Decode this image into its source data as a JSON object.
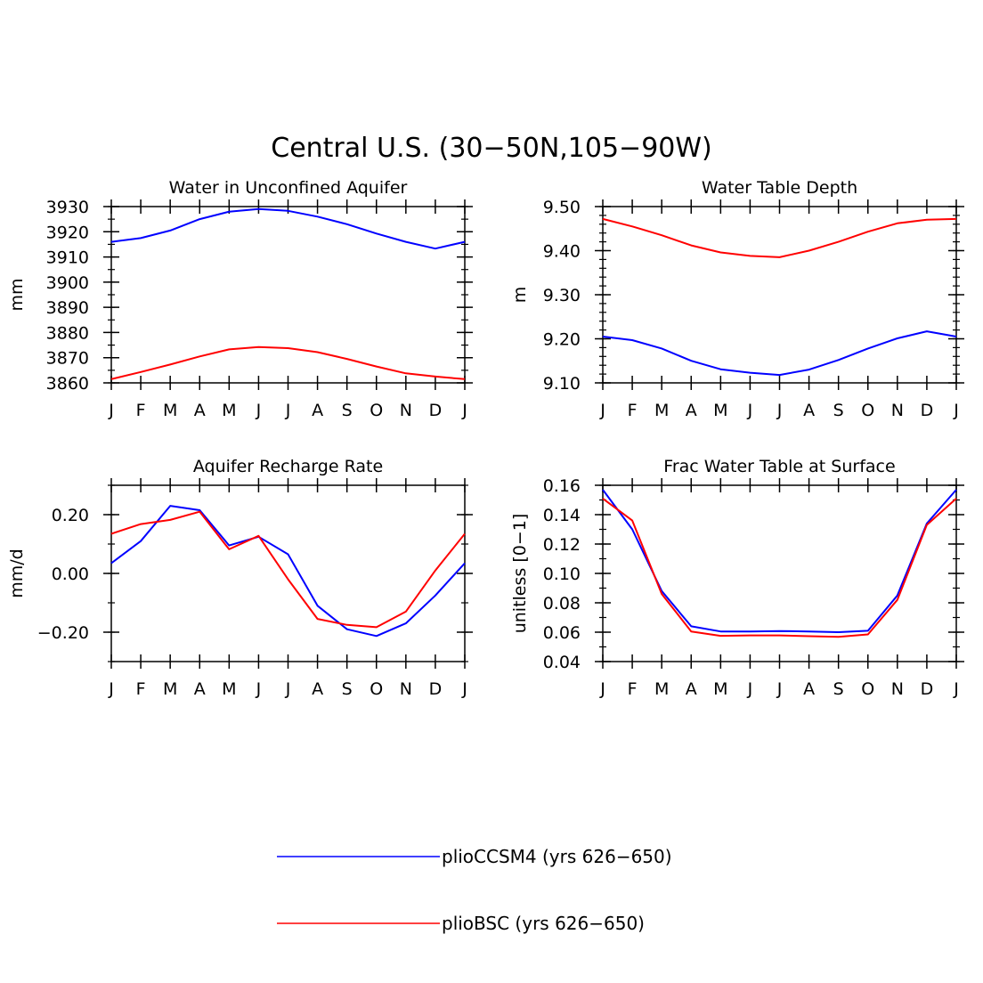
{
  "figure_title": "Central U.S. (30−50N,105−90W)",
  "colors": {
    "plioCCSM4": "#0000ff",
    "plioBSC": "#ff0000",
    "axes": "#000000",
    "background": "#ffffff"
  },
  "legend": {
    "entries": [
      {
        "series": "plioCCSM4",
        "label": "plioCCSM4 (yrs 626−650)"
      },
      {
        "series": "plioBSC",
        "label": "plioBSC (yrs 626−650)"
      }
    ]
  },
  "chart_data": [
    {
      "id": "aquifer-water",
      "type": "line",
      "title": "Water in Unconfined Aquifer",
      "xlabel": "",
      "ylabel": "mm",
      "categories": [
        "J",
        "F",
        "M",
        "A",
        "M",
        "J",
        "J",
        "A",
        "S",
        "O",
        "N",
        "D",
        "J"
      ],
      "ylim": [
        3860,
        3930
      ],
      "yticks": [
        3860,
        3870,
        3880,
        3890,
        3900,
        3910,
        3920,
        3930
      ],
      "ytick_labels": [
        "3860",
        "3870",
        "3880",
        "3890",
        "3900",
        "3910",
        "3920",
        "3930"
      ],
      "yminor": 5,
      "series": [
        {
          "name": "plioCCSM4",
          "values": [
            3916,
            3917.5,
            3920.5,
            3925,
            3928,
            3929,
            3928.3,
            3926,
            3923,
            3919.3,
            3916,
            3913.3,
            3916
          ]
        },
        {
          "name": "plioBSC",
          "values": [
            3861.5,
            3864.3,
            3867.3,
            3870.5,
            3873.3,
            3874.2,
            3873.8,
            3872.2,
            3869.5,
            3866.5,
            3863.8,
            3862.5,
            3861.5
          ]
        }
      ]
    },
    {
      "id": "water-table-depth",
      "type": "line",
      "title": "Water Table Depth",
      "xlabel": "",
      "ylabel": "m",
      "categories": [
        "J",
        "F",
        "M",
        "A",
        "M",
        "J",
        "J",
        "A",
        "S",
        "O",
        "N",
        "D",
        "J"
      ],
      "ylim": [
        9.1,
        9.5
      ],
      "yticks": [
        9.1,
        9.2,
        9.3,
        9.4,
        9.5
      ],
      "ytick_labels": [
        "9.10",
        "9.20",
        "9.30",
        "9.40",
        "9.50"
      ],
      "yminor": 0.02,
      "series": [
        {
          "name": "plioCCSM4",
          "values": [
            9.205,
            9.197,
            9.178,
            9.15,
            9.131,
            9.123,
            9.118,
            9.13,
            9.152,
            9.178,
            9.201,
            9.217,
            9.205
          ]
        },
        {
          "name": "plioBSC",
          "values": [
            9.472,
            9.455,
            9.435,
            9.412,
            9.396,
            9.388,
            9.385,
            9.4,
            9.42,
            9.443,
            9.462,
            9.47,
            9.472
          ]
        }
      ]
    },
    {
      "id": "recharge-rate",
      "type": "line",
      "title": "Aquifer Recharge Rate",
      "xlabel": "",
      "ylabel": "mm/d",
      "categories": [
        "J",
        "F",
        "M",
        "A",
        "M",
        "J",
        "J",
        "A",
        "S",
        "O",
        "N",
        "D",
        "J"
      ],
      "ylim": [
        -0.3,
        0.3
      ],
      "yticks": [
        -0.2,
        0.0,
        0.2
      ],
      "ytick_labels": [
        "−0.20",
        "0.00",
        "0.20"
      ],
      "yminor": 0.1,
      "series": [
        {
          "name": "plioCCSM4",
          "values": [
            0.035,
            0.11,
            0.23,
            0.215,
            0.095,
            0.125,
            0.065,
            -0.11,
            -0.19,
            -0.213,
            -0.17,
            -0.075,
            0.035
          ]
        },
        {
          "name": "plioBSC",
          "values": [
            0.135,
            0.168,
            0.182,
            0.21,
            0.082,
            0.128,
            -0.02,
            -0.155,
            -0.175,
            -0.183,
            -0.13,
            0.01,
            0.135
          ]
        }
      ]
    },
    {
      "id": "frac-water-table",
      "type": "line",
      "title": "Frac Water Table at Surface",
      "xlabel": "",
      "ylabel": "unitless [0−1]",
      "categories": [
        "J",
        "F",
        "M",
        "A",
        "M",
        "J",
        "J",
        "A",
        "S",
        "O",
        "N",
        "D",
        "J"
      ],
      "ylim": [
        0.04,
        0.16
      ],
      "yticks": [
        0.04,
        0.06,
        0.08,
        0.1,
        0.12,
        0.14,
        0.16
      ],
      "ytick_labels": [
        "0.04",
        "0.06",
        "0.08",
        "0.10",
        "0.12",
        "0.14",
        "0.16"
      ],
      "yminor": 0.01,
      "series": [
        {
          "name": "plioCCSM4",
          "values": [
            0.157,
            0.13,
            0.088,
            0.064,
            0.0605,
            0.0605,
            0.0608,
            0.0605,
            0.06,
            0.061,
            0.085,
            0.134,
            0.157
          ]
        },
        {
          "name": "plioBSC",
          "values": [
            0.151,
            0.136,
            0.086,
            0.0605,
            0.0575,
            0.0578,
            0.0578,
            0.0573,
            0.0568,
            0.0585,
            0.082,
            0.133,
            0.151
          ]
        }
      ]
    }
  ]
}
